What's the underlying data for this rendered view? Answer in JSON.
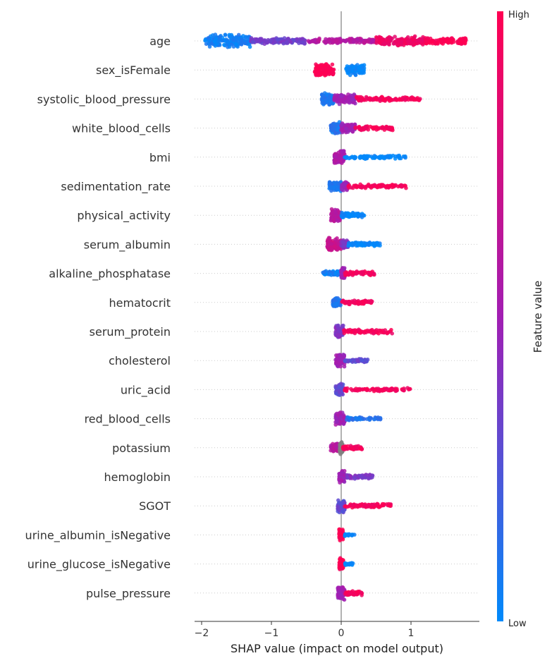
{
  "chart_data": {
    "type": "scatter",
    "subtype": "shap-beeswarm",
    "xlabel": "SHAP value (impact on model output)",
    "xlim": [
      -2.1,
      1.95
    ],
    "xticks": [
      -2,
      -1,
      0,
      1
    ],
    "xtick_labels": [
      "−2",
      "−1",
      "0",
      "1"
    ],
    "colorbar": {
      "label": "Feature value",
      "high_label": "High",
      "low_label": "Low",
      "low_color": "#008afb",
      "mid_color": "#a21eb3",
      "high_color": "#ff0052",
      "missing_color": "#808080"
    },
    "grid": "dotted horizontal row guides",
    "features": [
      {
        "name": "age",
        "segments": [
          [
            -1.95,
            -1.3,
            0.05,
            3
          ],
          [
            -1.3,
            -0.5,
            0.35,
            1.5
          ],
          [
            -0.5,
            0.5,
            0.6,
            1.2
          ],
          [
            0.5,
            1.2,
            0.9,
            2.2
          ],
          [
            1.2,
            1.8,
            1,
            1.6
          ]
        ]
      },
      {
        "name": "sex_isFemale",
        "segments": [
          [
            -0.38,
            -0.1,
            1,
            3
          ],
          [
            0.07,
            0.33,
            0,
            2.5
          ]
        ]
      },
      {
        "name": "systolic_blood_pressure",
        "segments": [
          [
            -0.28,
            -0.1,
            0.1,
            3
          ],
          [
            -0.1,
            0.2,
            0.5,
            2.5
          ],
          [
            0.2,
            1.15,
            0.95,
            1
          ]
        ]
      },
      {
        "name": "white_blood_cells",
        "segments": [
          [
            -0.15,
            0,
            0.1,
            3
          ],
          [
            0,
            0.2,
            0.5,
            2.2
          ],
          [
            0.2,
            0.75,
            0.95,
            1
          ]
        ]
      },
      {
        "name": "bmi",
        "segments": [
          [
            -0.1,
            0.05,
            0.55,
            3
          ],
          [
            0.05,
            0.93,
            0,
            0.8
          ]
        ]
      },
      {
        "name": "sedimentation_rate",
        "segments": [
          [
            -0.17,
            0,
            0.1,
            2.5
          ],
          [
            0,
            0.1,
            0.5,
            2
          ],
          [
            0.1,
            0.93,
            0.95,
            0.9
          ]
        ]
      },
      {
        "name": "physical_activity",
        "segments": [
          [
            -0.15,
            0,
            0.6,
            3
          ],
          [
            0,
            0.33,
            0,
            1.2
          ]
        ]
      },
      {
        "name": "serum_albumin",
        "segments": [
          [
            -0.2,
            0,
            0.7,
            3
          ],
          [
            0,
            0.1,
            0.4,
            2
          ],
          [
            0.1,
            0.57,
            0,
            1
          ]
        ]
      },
      {
        "name": "alkaline_phosphatase",
        "segments": [
          [
            -0.27,
            0,
            0.05,
            1.2
          ],
          [
            0,
            0.05,
            0.5,
            3
          ],
          [
            0.05,
            0.48,
            0.95,
            1
          ]
        ]
      },
      {
        "name": "hematocrit",
        "segments": [
          [
            -0.12,
            0,
            0.1,
            2.5
          ],
          [
            0,
            0.48,
            0.95,
            1
          ]
        ]
      },
      {
        "name": "serum_protein",
        "segments": [
          [
            -0.08,
            0.03,
            0.4,
            3
          ],
          [
            0.03,
            0.73,
            0.95,
            1
          ]
        ]
      },
      {
        "name": "cholesterol",
        "segments": [
          [
            -0.08,
            0.05,
            0.5,
            3
          ],
          [
            0.05,
            0.38,
            0.3,
            1
          ]
        ]
      },
      {
        "name": "uric_acid",
        "segments": [
          [
            -0.08,
            0.03,
            0.3,
            3
          ],
          [
            0.03,
            1.0,
            0.95,
            0.8
          ]
        ]
      },
      {
        "name": "red_blood_cells",
        "segments": [
          [
            -0.08,
            0.05,
            0.5,
            3
          ],
          [
            0.05,
            0.57,
            0.1,
            0.8
          ]
        ]
      },
      {
        "name": "potassium",
        "segments": [
          [
            -0.15,
            -0.02,
            0.6,
            2
          ],
          [
            -0.02,
            0.02,
            null,
            3
          ],
          [
            0.02,
            0.3,
            0.95,
            1
          ]
        ]
      },
      {
        "name": "hemoglobin",
        "segments": [
          [
            -0.03,
            0.05,
            0.5,
            3
          ],
          [
            0.05,
            0.45,
            0.4,
            1
          ]
        ]
      },
      {
        "name": "SGOT",
        "segments": [
          [
            -0.05,
            0.05,
            0.3,
            3
          ],
          [
            0.05,
            0.72,
            0.95,
            1
          ]
        ]
      },
      {
        "name": "urine_albumin_isNegative",
        "segments": [
          [
            -0.03,
            0.03,
            1,
            3
          ],
          [
            0.05,
            0.2,
            0,
            0.6
          ]
        ]
      },
      {
        "name": "urine_glucose_isNegative",
        "segments": [
          [
            -0.03,
            0.03,
            1,
            3
          ],
          [
            0.05,
            0.2,
            0,
            0.6
          ]
        ]
      },
      {
        "name": "pulse_pressure",
        "segments": [
          [
            -0.05,
            0.05,
            0.5,
            3
          ],
          [
            0.05,
            0.3,
            0.95,
            1
          ]
        ]
      }
    ]
  }
}
